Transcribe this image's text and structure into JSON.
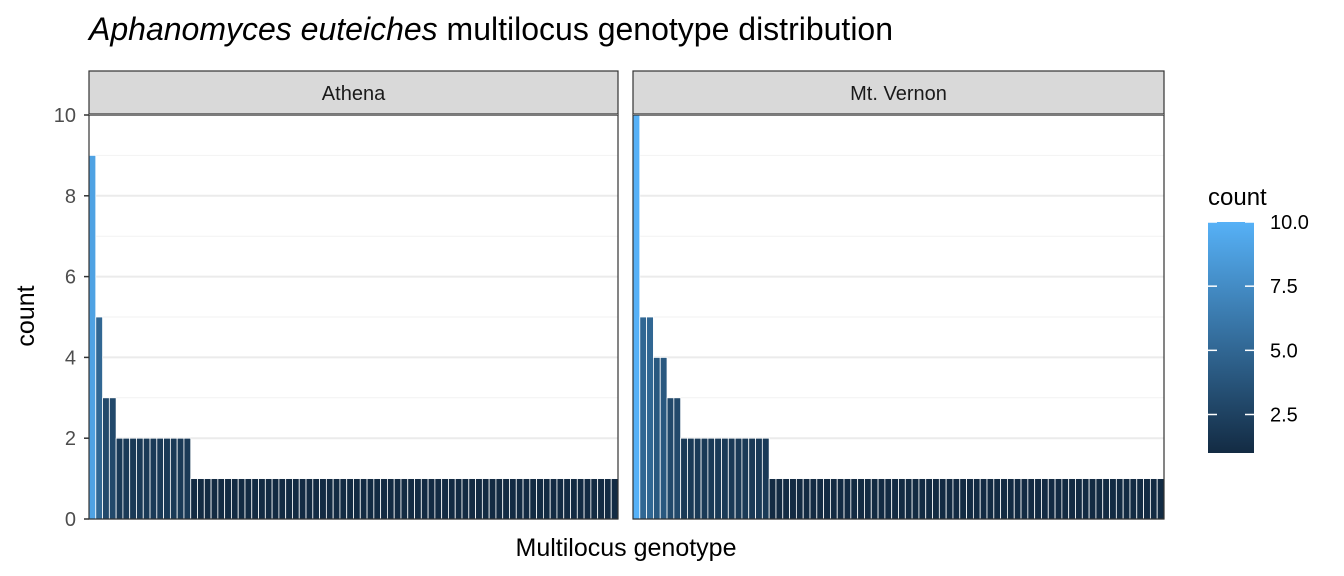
{
  "chart_data": {
    "type": "bar",
    "title_italic": "Aphanomyces euteiches",
    "title_rest": " multilocus genotype distribution",
    "xlabel": "Multilocus genotype",
    "ylabel": "count",
    "ylim": [
      0,
      10
    ],
    "y_ticks": [
      "0",
      "2",
      "4",
      "6",
      "8",
      "10"
    ],
    "grid": true,
    "panels": [
      {
        "name": "Athena",
        "values": [
          9,
          5,
          3,
          3,
          2,
          2,
          2,
          2,
          2,
          2,
          2,
          2,
          2,
          2,
          2,
          1,
          1,
          1,
          1,
          1,
          1,
          1,
          1,
          1,
          1,
          1,
          1,
          1,
          1,
          1,
          1,
          1,
          1,
          1,
          1,
          1,
          1,
          1,
          1,
          1,
          1,
          1,
          1,
          1,
          1,
          1,
          1,
          1,
          1,
          1,
          1,
          1,
          1,
          1,
          1,
          1,
          1,
          1,
          1,
          1,
          1,
          1,
          1,
          1,
          1,
          1,
          1,
          1,
          1,
          1,
          1,
          1,
          1,
          1,
          1,
          1,
          1,
          1
        ]
      },
      {
        "name": "Mt. Vernon",
        "values": [
          10,
          5,
          5,
          4,
          4,
          3,
          3,
          2,
          2,
          2,
          2,
          2,
          2,
          2,
          2,
          2,
          2,
          2,
          2,
          2,
          1,
          1,
          1,
          1,
          1,
          1,
          1,
          1,
          1,
          1,
          1,
          1,
          1,
          1,
          1,
          1,
          1,
          1,
          1,
          1,
          1,
          1,
          1,
          1,
          1,
          1,
          1,
          1,
          1,
          1,
          1,
          1,
          1,
          1,
          1,
          1,
          1,
          1,
          1,
          1,
          1,
          1,
          1,
          1,
          1,
          1,
          1,
          1,
          1,
          1,
          1,
          1,
          1,
          1,
          1,
          1,
          1,
          1
        ]
      }
    ],
    "legend": {
      "title": "count",
      "position": "right",
      "ticks": [
        "2.5",
        "5.0",
        "7.5",
        "10.0"
      ],
      "tick_values": [
        2.5,
        5.0,
        7.5,
        10.0
      ],
      "range": [
        1,
        10
      ],
      "color_low": "#132B43",
      "color_high": "#56B1F7"
    }
  }
}
